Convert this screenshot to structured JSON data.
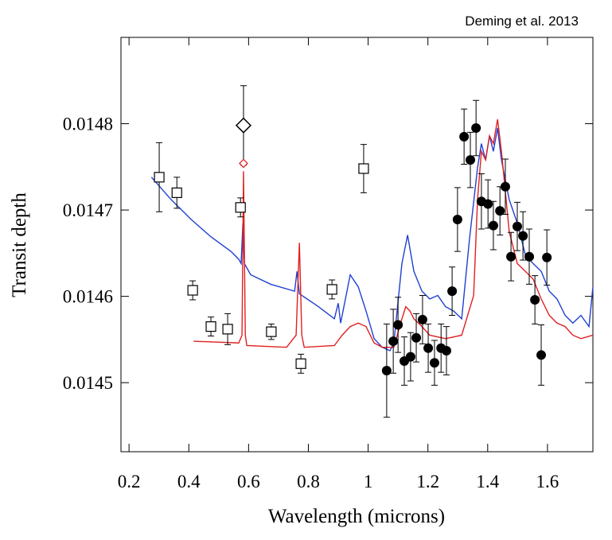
{
  "chart_data": {
    "type": "line",
    "annotation": "Deming et al. 2013",
    "x_label": "Wavelength (microns)",
    "y_label": "Transit depth",
    "xlim": [
      0.173,
      1.752
    ],
    "ylim": [
      0.01442,
      0.0149
    ],
    "xticks": [
      0.2,
      0.4,
      0.6,
      0.8,
      1.0,
      1.2,
      1.4,
      1.6
    ],
    "yticks": [
      0.0145,
      0.0146,
      0.0147,
      0.0148
    ],
    "grid": false,
    "series": [
      {
        "color": "#2040d0",
        "marker": "none",
        "x": [
          0.275,
          0.341,
          0.408,
          0.474,
          0.541,
          0.567,
          0.575,
          0.581,
          0.586,
          0.607,
          0.674,
          0.754,
          0.762,
          0.77,
          0.834,
          0.887,
          0.9,
          0.908,
          0.94,
          0.967,
          0.993,
          1.02,
          1.047,
          1.073,
          1.086,
          1.113,
          1.132,
          1.153,
          1.18,
          1.206,
          1.233,
          1.259,
          1.286,
          1.313,
          1.339,
          1.366,
          1.379,
          1.393,
          1.406,
          1.419,
          1.433,
          1.446,
          1.472,
          1.499,
          1.526,
          1.552,
          1.579,
          1.606,
          1.632,
          1.659,
          1.685,
          1.712,
          1.739,
          1.752
        ],
        "values": [
          0.014738,
          0.014712,
          0.014689,
          0.014669,
          0.014652,
          0.014643,
          0.014638,
          0.014685,
          0.014638,
          0.014625,
          0.014614,
          0.014606,
          0.014629,
          0.014603,
          0.014588,
          0.014574,
          0.014592,
          0.014569,
          0.014625,
          0.014611,
          0.014583,
          0.014551,
          0.014541,
          0.014537,
          0.014546,
          0.014638,
          0.014671,
          0.014629,
          0.014606,
          0.014597,
          0.014601,
          0.014588,
          0.014583,
          0.014574,
          0.014666,
          0.014749,
          0.014777,
          0.014758,
          0.014786,
          0.014768,
          0.014795,
          0.014758,
          0.014712,
          0.014685,
          0.014648,
          0.014638,
          0.014629,
          0.014606,
          0.014597,
          0.014578,
          0.014569,
          0.014578,
          0.014565,
          0.014611
        ]
      },
      {
        "color": "#e02020",
        "marker": "none",
        "x": [
          0.416,
          0.567,
          0.578,
          0.583,
          0.589,
          0.594,
          0.727,
          0.759,
          0.77,
          0.778,
          0.786,
          0.887,
          0.913,
          0.94,
          0.967,
          0.993,
          1.02,
          1.047,
          1.086,
          1.113,
          1.126,
          1.14,
          1.153,
          1.18,
          1.206,
          1.259,
          1.313,
          1.353,
          1.366,
          1.379,
          1.393,
          1.406,
          1.419,
          1.433,
          1.446,
          1.472,
          1.499,
          1.526,
          1.552,
          1.579,
          1.606,
          1.632,
          1.659,
          1.685,
          1.712,
          1.752
        ],
        "values": [
          0.014548,
          0.014546,
          0.014555,
          0.014745,
          0.014555,
          0.014543,
          0.014541,
          0.014555,
          0.014662,
          0.014555,
          0.014541,
          0.014543,
          0.014555,
          0.014565,
          0.014569,
          0.014565,
          0.014546,
          0.014541,
          0.014541,
          0.014574,
          0.014588,
          0.014583,
          0.014574,
          0.014565,
          0.014555,
          0.014551,
          0.014555,
          0.014601,
          0.014712,
          0.014768,
          0.014758,
          0.014786,
          0.014777,
          0.014805,
          0.014768,
          0.014675,
          0.014638,
          0.014629,
          0.01462,
          0.014597,
          0.014578,
          0.014569,
          0.014565,
          0.014555,
          0.014551,
          0.014555
        ]
      },
      {
        "color": "#000000",
        "marker": "square",
        "x": [
          0.301,
          0.36,
          0.413,
          0.474,
          0.53,
          0.573,
          0.676,
          0.775,
          0.879,
          0.985
        ],
        "values": [
          0.014738,
          0.01472,
          0.014607,
          0.014565,
          0.014562,
          0.014703,
          0.014559,
          0.014522,
          0.014608,
          0.014748
        ],
        "error": [
          4e-05,
          1.8e-05,
          1.1e-05,
          1.1e-05,
          1.8e-05,
          1.1e-05,
          9e-06,
          1.1e-05,
          1.1e-05,
          2.8e-05
        ]
      },
      {
        "color": "#000000",
        "marker": "diamond",
        "x": [
          0.583
        ],
        "values": [
          0.014798
        ],
        "error": [
          4.6e-05
        ]
      },
      {
        "color": "#e02020",
        "marker": "small-diamond",
        "x": [
          0.583
        ],
        "values": [
          0.014754
        ]
      },
      {
        "color": "#000000",
        "marker": "circle",
        "x": [
          1.062,
          1.084,
          1.1,
          1.121,
          1.142,
          1.161,
          1.182,
          1.201,
          1.222,
          1.244,
          1.262,
          1.281,
          1.299,
          1.321,
          1.342,
          1.361,
          1.379,
          1.401,
          1.419,
          1.441,
          1.459,
          1.478,
          1.499,
          1.518,
          1.539,
          1.558,
          1.579,
          1.598
        ],
        "values": [
          0.014514,
          0.014548,
          0.014567,
          0.014525,
          0.01453,
          0.014552,
          0.014573,
          0.01454,
          0.014523,
          0.01454,
          0.014537,
          0.014606,
          0.014689,
          0.014785,
          0.014758,
          0.014795,
          0.01471,
          0.014707,
          0.014682,
          0.014699,
          0.014727,
          0.014646,
          0.014681,
          0.01467,
          0.014646,
          0.014596,
          0.014532,
          0.014645
        ],
        "error": [
          5.4e-05,
          3.7e-05,
          3.2e-05,
          2.8e-05,
          2.8e-05,
          2.8e-05,
          2.8e-05,
          2.8e-05,
          2.6e-05,
          2.8e-05,
          2.8e-05,
          2.8e-05,
          3.7e-05,
          3.2e-05,
          3.2e-05,
          3.2e-05,
          3.2e-05,
          2.8e-05,
          2.8e-05,
          2.8e-05,
          3.2e-05,
          2.8e-05,
          2.8e-05,
          2.8e-05,
          3.2e-05,
          2.8e-05,
          3.5e-05,
          3.2e-05
        ]
      }
    ]
  }
}
